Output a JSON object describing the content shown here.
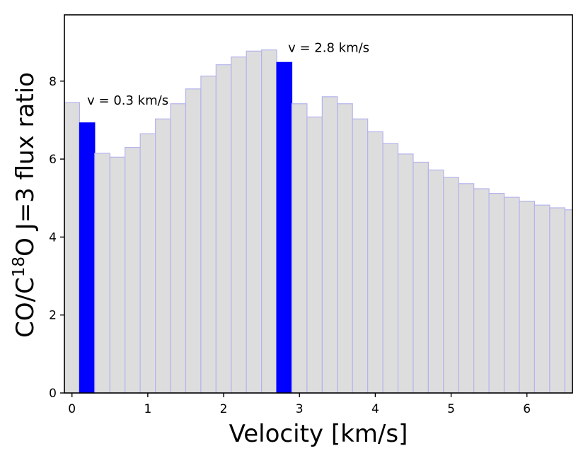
{
  "chart_data": {
    "type": "bar",
    "xlabel": "Velocity [km/s]",
    "ylabel_prefix": "CO/C",
    "ylabel_superscript": "18",
    "ylabel_suffix": "O  J=3 flux ratio",
    "x_tick_labels": [
      "0",
      "1",
      "2",
      "3",
      "4",
      "5",
      "6"
    ],
    "y_tick_labels": [
      "0",
      "2",
      "4",
      "6",
      "8"
    ],
    "x_ticks": [
      0,
      1,
      2,
      3,
      4,
      5,
      6
    ],
    "y_ticks": [
      0,
      2,
      4,
      6,
      8
    ],
    "xlim": [
      -0.1,
      6.6
    ],
    "ylim": [
      0,
      9.7
    ],
    "bin_width": 0.2,
    "bin_starts": [
      -0.1,
      0.1,
      0.3,
      0.5,
      0.7,
      0.9,
      1.1,
      1.3,
      1.5,
      1.7,
      1.9,
      2.1,
      2.3,
      2.5,
      2.7,
      2.9,
      3.1,
      3.3,
      3.5,
      3.7,
      3.9,
      4.1,
      4.3,
      4.5,
      4.7,
      4.9,
      5.1,
      5.3,
      5.5,
      5.7,
      5.9,
      6.1,
      6.3,
      6.5
    ],
    "values": [
      7.45,
      6.93,
      6.15,
      6.05,
      6.3,
      6.65,
      7.03,
      7.42,
      7.8,
      8.13,
      8.42,
      8.62,
      8.77,
      8.8,
      8.48,
      7.42,
      7.08,
      7.6,
      7.42,
      7.03,
      6.7,
      6.4,
      6.13,
      5.92,
      5.72,
      5.53,
      5.37,
      5.24,
      5.12,
      5.02,
      4.92,
      4.82,
      4.75,
      4.7
    ],
    "highlighted_indices": [
      1,
      14
    ],
    "colors": {
      "bar_fill": "#dddddd",
      "bar_edge": "#b4b4ee",
      "highlight": "#0000ff",
      "axis": "#000000"
    },
    "annotations": [
      {
        "text": "v = 0.3 km/s",
        "x": 0.2,
        "y": 7.4
      },
      {
        "text": "v = 2.8 km/s",
        "x": 2.85,
        "y": 8.75
      }
    ]
  }
}
